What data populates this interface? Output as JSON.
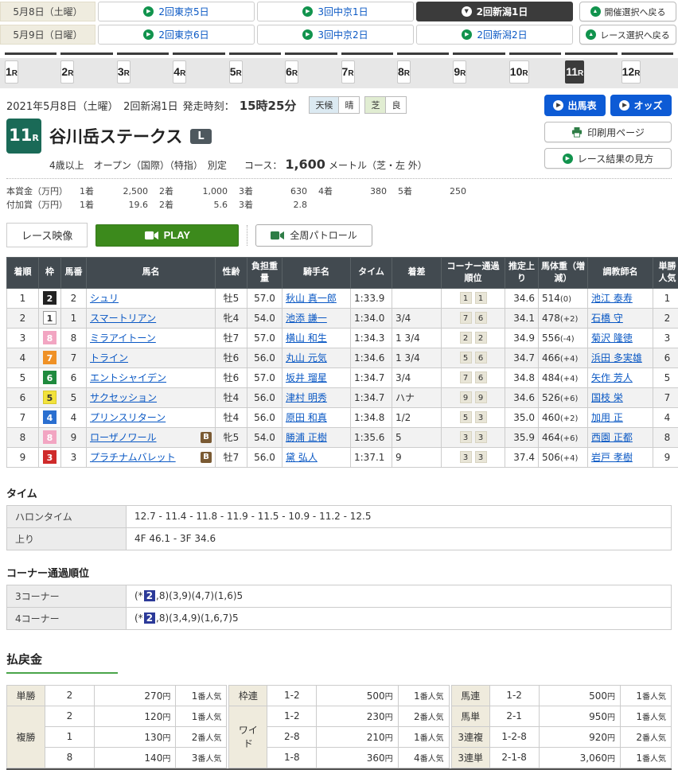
{
  "colors": {
    "accent_blue": "#0d5bd5",
    "link_blue": "#0a58c4",
    "selected_dark": "#3b3b3b",
    "race_badge_green": "#1a6a57",
    "play_green": "#3c8a1c",
    "icon_green": "#11934d",
    "table_header": "#424a50",
    "highlight_navy": "#2c3a99",
    "payout_beige": "#efebdd",
    "payout_underline_green": "#4aa54a"
  },
  "icons": {
    "forward": "▶",
    "down": "▼",
    "up": "▲"
  },
  "date_selector": {
    "rows": [
      {
        "date": "5月8日（土曜）",
        "links": [
          {
            "label": "2回東京5日",
            "selected": false
          },
          {
            "label": "3回中京1日",
            "selected": false
          },
          {
            "label": "2回新潟1日",
            "selected": true
          }
        ]
      },
      {
        "date": "5月9日（日曜）",
        "links": [
          {
            "label": "2回東京6日",
            "selected": false
          },
          {
            "label": "3回中京2日",
            "selected": false
          },
          {
            "label": "2回新潟2日",
            "selected": false
          }
        ]
      }
    ],
    "back_buttons": [
      "開催選択へ戻る",
      "レース選択へ戻る"
    ]
  },
  "race_tabs": {
    "numbers": [
      "1",
      "2",
      "3",
      "4",
      "5",
      "6",
      "7",
      "8",
      "9",
      "10",
      "11",
      "12"
    ],
    "suffix": "R",
    "selected": "11"
  },
  "race_header": {
    "date_line": "2021年5月8日（土曜）　2回新潟1日",
    "start_label": "発走時刻：",
    "start_time": "15時25分",
    "weather": [
      {
        "label": "天候",
        "value": "晴"
      },
      {
        "label": "芝",
        "value": "良"
      }
    ],
    "race_number": "11",
    "race_number_suffix": "R",
    "title": "谷川岳ステークス",
    "grade": "L",
    "conditions": "4歳以上　オープン（国際）（特指）　別定",
    "course_label": "コース：",
    "course_value": "1,600",
    "course_suffix": "メートル（芝・左 外）",
    "buttons": {
      "entries": "出馬表",
      "odds": "オッズ",
      "print": "印刷用ページ",
      "guide": "レース結果の見方"
    },
    "prize_main_label": "本賞金（万円）",
    "prize_main": [
      {
        "rank": "1着",
        "amount": "2,500"
      },
      {
        "rank": "2着",
        "amount": "1,000"
      },
      {
        "rank": "3着",
        "amount": "630"
      },
      {
        "rank": "4着",
        "amount": "380"
      },
      {
        "rank": "5着",
        "amount": "250"
      }
    ],
    "prize_addl_label": "付加賞（万円）",
    "prize_addl": [
      {
        "rank": "1着",
        "amount": "19.6"
      },
      {
        "rank": "2着",
        "amount": "5.6"
      },
      {
        "rank": "3着",
        "amount": "2.8"
      }
    ]
  },
  "video": {
    "label": "レース映像",
    "play": "PLAY",
    "patrol": "全周パトロール"
  },
  "results": {
    "columns": [
      "着順",
      "枠",
      "馬番",
      "馬名",
      "性齢",
      "負担重量",
      "騎手名",
      "タイム",
      "着差",
      "コーナー通過順位",
      "推定上り",
      "馬体重（増減）",
      "調教師名",
      "単勝人気"
    ],
    "blinker_label": "B",
    "waku_colors": {
      "1": {
        "bg": "#ffffff",
        "fg": "#333333",
        "border": "#999999"
      },
      "2": {
        "bg": "#222222",
        "fg": "#ffffff",
        "border": "#222222"
      },
      "3": {
        "bg": "#cf2a2a",
        "fg": "#ffffff",
        "border": "#cf2a2a"
      },
      "4": {
        "bg": "#2a6fd0",
        "fg": "#ffffff",
        "border": "#2a6fd0"
      },
      "5": {
        "bg": "#f2e23c",
        "fg": "#333333",
        "border": "#d8c92a"
      },
      "6": {
        "bg": "#1f8a3e",
        "fg": "#ffffff",
        "border": "#1f8a3e"
      },
      "7": {
        "bg": "#ef9126",
        "fg": "#ffffff",
        "border": "#ef9126"
      },
      "8": {
        "bg": "#f2a5c2",
        "fg": "#ffffff",
        "border": "#f2a5c2"
      }
    },
    "rows": [
      {
        "pos": "1",
        "waku": "2",
        "num": "2",
        "name": "シュリ",
        "blinker": false,
        "sexage": "牡5",
        "load": "57.0",
        "jockey": "秋山 真一郎",
        "time": "1:33.9",
        "margin": "",
        "c1": "1",
        "c2": "1",
        "agari": "34.6",
        "weight": "514",
        "wdiff": "(0)",
        "trainer": "池江 泰寿",
        "pop": "1"
      },
      {
        "pos": "2",
        "waku": "1",
        "num": "1",
        "name": "スマートリアン",
        "blinker": false,
        "sexage": "牝4",
        "load": "54.0",
        "jockey": "池添 謙一",
        "time": "1:34.0",
        "margin": "3/4",
        "c1": "7",
        "c2": "6",
        "agari": "34.1",
        "weight": "478",
        "wdiff": "(+2)",
        "trainer": "石橋 守",
        "pop": "2"
      },
      {
        "pos": "3",
        "waku": "8",
        "num": "8",
        "name": "ミラアイトーン",
        "blinker": false,
        "sexage": "牡7",
        "load": "57.0",
        "jockey": "横山 和生",
        "time": "1:34.3",
        "margin": "1 3/4",
        "c1": "2",
        "c2": "2",
        "agari": "34.9",
        "weight": "556",
        "wdiff": "(-4)",
        "trainer": "菊沢 隆徳",
        "pop": "3"
      },
      {
        "pos": "4",
        "waku": "7",
        "num": "7",
        "name": "トライン",
        "blinker": false,
        "sexage": "牡6",
        "load": "56.0",
        "jockey": "丸山 元気",
        "time": "1:34.6",
        "margin": "1 3/4",
        "c1": "5",
        "c2": "6",
        "agari": "34.7",
        "weight": "466",
        "wdiff": "(+4)",
        "trainer": "浜田 多実雄",
        "pop": "6"
      },
      {
        "pos": "5",
        "waku": "6",
        "num": "6",
        "name": "エントシャイデン",
        "blinker": false,
        "sexage": "牡6",
        "load": "57.0",
        "jockey": "坂井 瑠星",
        "time": "1:34.7",
        "margin": "3/4",
        "c1": "7",
        "c2": "6",
        "agari": "34.8",
        "weight": "484",
        "wdiff": "(+4)",
        "trainer": "矢作 芳人",
        "pop": "5"
      },
      {
        "pos": "6",
        "waku": "5",
        "num": "5",
        "name": "サクセッション",
        "blinker": false,
        "sexage": "牡4",
        "load": "56.0",
        "jockey": "津村 明秀",
        "time": "1:34.7",
        "margin": "ハナ",
        "c1": "9",
        "c2": "9",
        "agari": "34.6",
        "weight": "526",
        "wdiff": "(+6)",
        "trainer": "国枝 栄",
        "pop": "7"
      },
      {
        "pos": "7",
        "waku": "4",
        "num": "4",
        "name": "プリンスリターン",
        "blinker": false,
        "sexage": "牡4",
        "load": "56.0",
        "jockey": "原田 和真",
        "time": "1:34.8",
        "margin": "1/2",
        "c1": "5",
        "c2": "3",
        "agari": "35.0",
        "weight": "460",
        "wdiff": "(+2)",
        "trainer": "加用 正",
        "pop": "4"
      },
      {
        "pos": "8",
        "waku": "8",
        "num": "9",
        "name": "ローザノワール",
        "blinker": true,
        "sexage": "牝5",
        "load": "54.0",
        "jockey": "勝浦 正樹",
        "time": "1:35.6",
        "margin": "5",
        "c1": "3",
        "c2": "3",
        "agari": "35.9",
        "weight": "464",
        "wdiff": "(+6)",
        "trainer": "西園 正都",
        "pop": "8"
      },
      {
        "pos": "9",
        "waku": "3",
        "num": "3",
        "name": "プラチナムバレット",
        "blinker": true,
        "sexage": "牡7",
        "load": "56.0",
        "jockey": "黛 弘人",
        "time": "1:37.1",
        "margin": "9",
        "c1": "3",
        "c2": "3",
        "agari": "37.4",
        "weight": "506",
        "wdiff": "(+4)",
        "trainer": "岩戸 孝樹",
        "pop": "9"
      }
    ]
  },
  "time_section": {
    "heading": "タイム",
    "rows": [
      {
        "label": "ハロンタイム",
        "value": "12.7 - 11.4 - 11.8 - 11.9 - 11.5 - 10.9 - 11.2 - 12.5"
      },
      {
        "label": "上り",
        "value": "4F 46.1 - 3F 34.6"
      }
    ]
  },
  "corner_section": {
    "heading": "コーナー通過順位",
    "rows": [
      {
        "label": "3コーナー",
        "prefix": "(*",
        "highlight": "2",
        "rest": ",8)(3,9)(4,7)(1,6)5"
      },
      {
        "label": "4コーナー",
        "prefix": "(*",
        "highlight": "2",
        "rest": ",8)(3,4,9)(1,6,7)5"
      }
    ]
  },
  "payout": {
    "heading": "払戻金",
    "unit_pay": "円",
    "unit_pop": "番人気",
    "groups": [
      [
        {
          "type": "単勝",
          "combos": [
            [
              "2",
              "270",
              "1"
            ]
          ]
        },
        {
          "type": "複勝",
          "combos": [
            [
              "2",
              "120",
              "1"
            ],
            [
              "1",
              "130",
              "2"
            ],
            [
              "8",
              "140",
              "3"
            ]
          ]
        }
      ],
      [
        {
          "type": "枠連",
          "combos": [
            [
              "1-2",
              "500",
              "1"
            ]
          ]
        },
        {
          "type": "ワイド",
          "combos": [
            [
              "1-2",
              "230",
              "2"
            ],
            [
              "2-8",
              "210",
              "1"
            ],
            [
              "1-8",
              "360",
              "4"
            ]
          ]
        }
      ],
      [
        {
          "type": "馬連",
          "combos": [
            [
              "1-2",
              "500",
              "1"
            ]
          ]
        },
        {
          "type": "馬単",
          "combos": [
            [
              "2-1",
              "950",
              "1"
            ]
          ]
        },
        {
          "type": "3連複",
          "combos": [
            [
              "1-2-8",
              "920",
              "2"
            ]
          ]
        },
        {
          "type": "3連単",
          "combos": [
            [
              "2-1-8",
              "3,060",
              "1"
            ]
          ]
        }
      ]
    ]
  }
}
